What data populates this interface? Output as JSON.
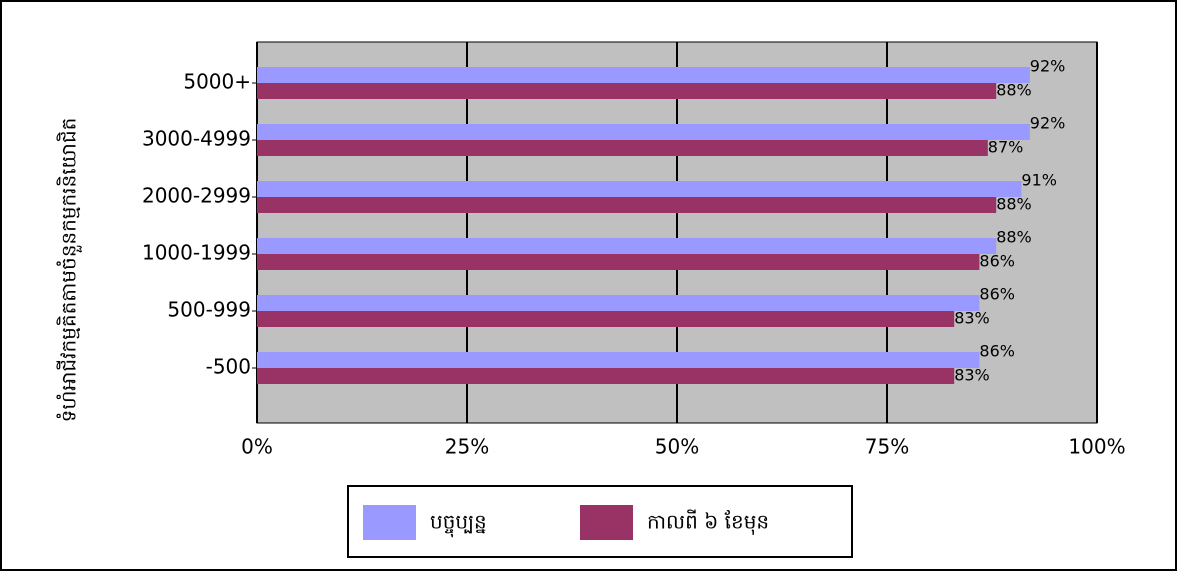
{
  "chart_data": {
    "type": "hbar",
    "y_label": "ទំហំអាជីវកម្មគិតតាមចំនួនកម្មករនិយោជិត",
    "categories": [
      "5000+",
      "3000-4999",
      "2000-2999",
      "1000-1999",
      "500-999",
      "-500"
    ],
    "series": [
      {
        "name": "បច្ចុប្បន្ន",
        "color": "#9999ff",
        "values": [
          92,
          92,
          91,
          88,
          86,
          86
        ],
        "value_labels": [
          "92%",
          "92%",
          "91%",
          "88%",
          "86%",
          "86%"
        ]
      },
      {
        "name": "កាលពី ៦ ខែមុន",
        "color": "#993366",
        "values": [
          88,
          87,
          88,
          86,
          83,
          83
        ],
        "value_labels": [
          "88%",
          "87%",
          "88%",
          "86%",
          "83%",
          "83%"
        ]
      }
    ],
    "xlim": [
      0,
      100
    ],
    "xticks": [
      {
        "value": 0,
        "label": "0%"
      },
      {
        "value": 25,
        "label": "25%"
      },
      {
        "value": 50,
        "label": "50%"
      },
      {
        "value": 75,
        "label": "75%"
      },
      {
        "value": 100,
        "label": "100%"
      }
    ],
    "grid": true,
    "plot_background": "#c0c0c0"
  }
}
